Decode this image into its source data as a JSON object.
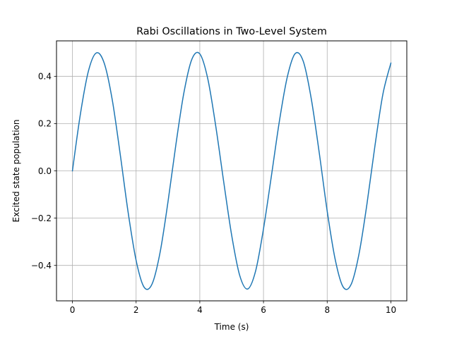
{
  "chart_data": {
    "type": "line",
    "title": "Rabi Oscillations in Two-Level System",
    "xlabel": "Time (s)",
    "ylabel": "Excited state population",
    "xlim": [
      -0.5,
      10.5
    ],
    "ylim": [
      -0.55,
      0.55
    ],
    "xticks": [
      0,
      2,
      4,
      6,
      8,
      10
    ],
    "xtick_labels": [
      "0",
      "2",
      "4",
      "6",
      "8",
      "10"
    ],
    "yticks": [
      -0.4,
      -0.2,
      0.0,
      0.2,
      0.4
    ],
    "ytick_labels": [
      "−0.4",
      "−0.2",
      "0.0",
      "0.2",
      "0.4"
    ],
    "grid": true,
    "series": [
      {
        "color": "#1f77b4",
        "x": [
          0,
          0.25,
          0.5,
          0.75,
          1.0,
          1.25,
          1.5,
          1.75,
          2.0,
          2.25,
          2.5,
          2.75,
          3.0,
          3.25,
          3.5,
          3.75,
          4.0,
          4.25,
          4.5,
          4.75,
          5.0,
          5.25,
          5.5,
          5.75,
          6.0,
          6.25,
          6.5,
          6.75,
          7.0,
          7.25,
          7.5,
          7.75,
          8.0,
          8.25,
          8.5,
          8.75,
          9.0,
          9.25,
          9.5,
          9.75,
          10.0
        ],
        "y": [
          0.0,
          0.24,
          0.421,
          0.499,
          0.455,
          0.301,
          0.071,
          -0.176,
          -0.379,
          -0.492,
          -0.479,
          -0.347,
          -0.132,
          0.112,
          0.33,
          0.472,
          0.495,
          0.39,
          0.19,
          -0.046,
          -0.272,
          -0.441,
          -0.5,
          -0.425,
          -0.245,
          -0.02,
          0.211,
          0.399,
          0.497,
          0.463,
          0.305,
          0.077,
          -0.17,
          -0.374,
          -0.491,
          -0.481,
          -0.351,
          -0.139,
          0.106,
          0.325,
          0.456
        ]
      }
    ]
  }
}
